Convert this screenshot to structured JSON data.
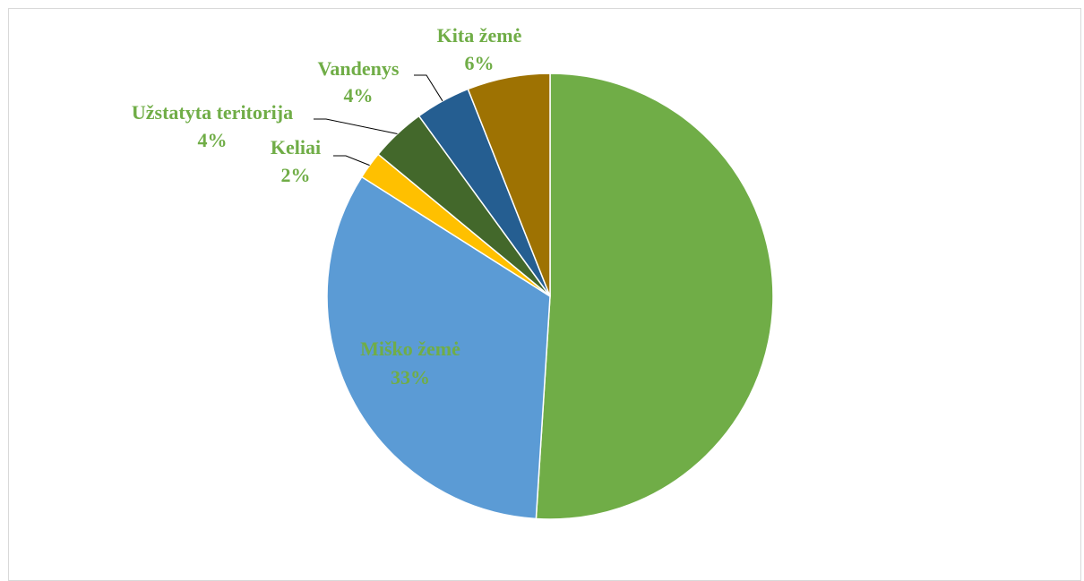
{
  "chart_data": {
    "type": "pie",
    "start_angle_deg": 0,
    "direction": "clockwise",
    "slices": [
      {
        "label": "",
        "pct_text": "",
        "value": 51,
        "color": "#70AD47",
        "label_color": "#70AD47"
      },
      {
        "label": "Miško žemė",
        "pct_text": "33%",
        "value": 33,
        "color": "#5B9BD5",
        "label_color": "#70AD47"
      },
      {
        "label": "Keliai",
        "pct_text": "2%",
        "value": 2,
        "color": "#FFC000",
        "label_color": "#70AD47"
      },
      {
        "label": "Užstatyta teritorija",
        "pct_text": "4%",
        "value": 4,
        "color": "#43682B",
        "label_color": "#70AD47"
      },
      {
        "label": "Vandenys",
        "pct_text": "4%",
        "value": 4,
        "color": "#255E91",
        "label_color": "#70AD47"
      },
      {
        "label": "Kita žemė",
        "pct_text": "6%",
        "value": 6,
        "color": "#9E7202",
        "label_color": "#70AD47"
      }
    ],
    "legend": "none"
  }
}
